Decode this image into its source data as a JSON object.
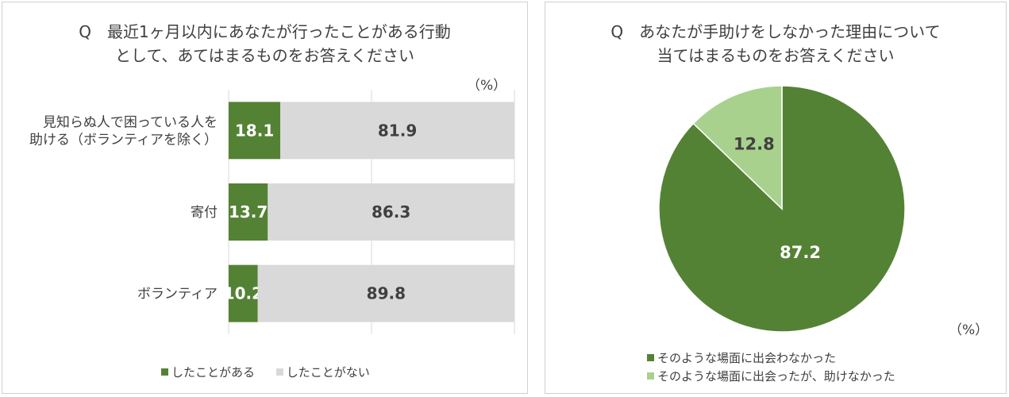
{
  "colors": {
    "did": "#548235",
    "did_not": "#d9d9d9",
    "pie_main": "#548235",
    "pie_minor": "#a9d18e"
  },
  "left": {
    "title_line1": "Q　最近1ヶ月以内にあなたが行ったことがある行動",
    "title_line2": "として、あてはまるものをお答えください",
    "unit": "（%）",
    "legend": [
      "したことがある",
      "したことがない"
    ]
  },
  "right": {
    "title_line1": "Q　あなたが手助けをしなかった理由について",
    "title_line2": "当てはまるものをお答えください",
    "unit": "（%）",
    "legend": [
      "そのような場面に出会わなかった",
      "そのような場面に出会ったが、助けなかった"
    ]
  },
  "chart_data": [
    {
      "type": "bar",
      "orientation": "horizontal",
      "stacked": true,
      "title": "Q　最近1ヶ月以内にあなたが行ったことがある行動として、あてはまるものをお答えください",
      "categories": [
        [
          "見知らぬ人で困っている人を",
          "助ける（ボランティアを除く）"
        ],
        [
          "寄付"
        ],
        [
          "ボランティア"
        ]
      ],
      "series": [
        {
          "name": "したことがある",
          "values": [
            18.1,
            13.7,
            10.2
          ]
        },
        {
          "name": "したことがない",
          "values": [
            81.9,
            86.3,
            89.8
          ]
        }
      ],
      "xlim": [
        0,
        100
      ],
      "grid": true,
      "legend_position": "bottom",
      "data_labels": true
    },
    {
      "type": "pie",
      "title": "Q　あなたが手助けをしなかった理由について当てはまるものをお答えください",
      "labels": [
        "そのような場面に出会わなかった",
        "そのような場面に出会ったが、助けなかった"
      ],
      "values": [
        87.2,
        12.8
      ],
      "legend_position": "bottom",
      "data_labels": true
    }
  ]
}
